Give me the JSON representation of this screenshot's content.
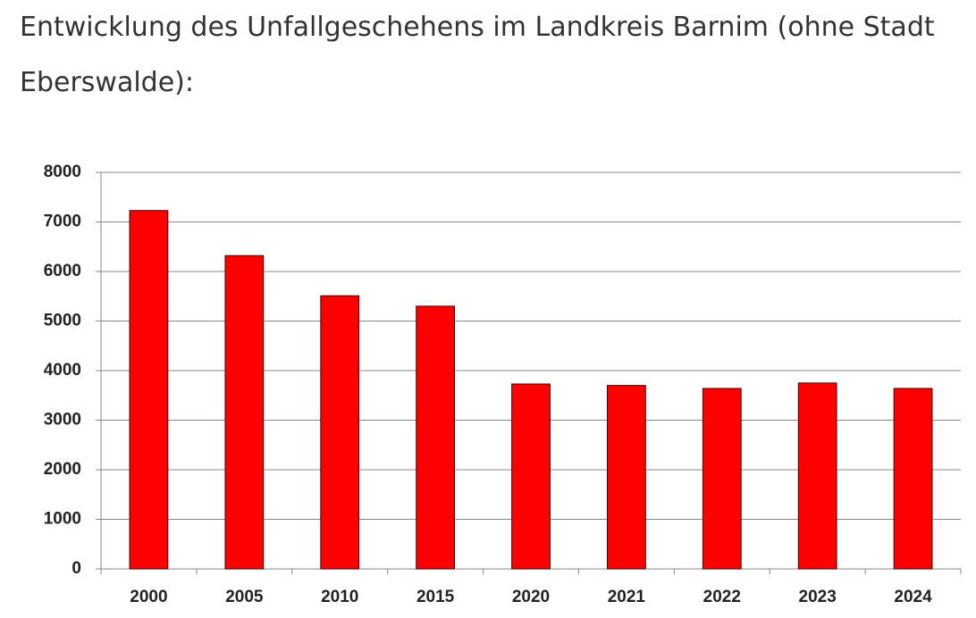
{
  "chart_data": {
    "type": "bar",
    "title": "Entwicklung des Unfallgeschehens im Landkreis Barnim (ohne Stadt Eberswalde):",
    "categories": [
      "2000",
      "2005",
      "2010",
      "2015",
      "2020",
      "2021",
      "2022",
      "2023",
      "2024"
    ],
    "values": [
      7230,
      6320,
      5510,
      5300,
      3730,
      3700,
      3640,
      3750,
      3640
    ],
    "color": "#ff0000",
    "ylim": [
      0,
      8000
    ],
    "yticks": [
      0,
      1000,
      2000,
      3000,
      4000,
      5000,
      6000,
      7000,
      8000
    ],
    "grid": true
  }
}
